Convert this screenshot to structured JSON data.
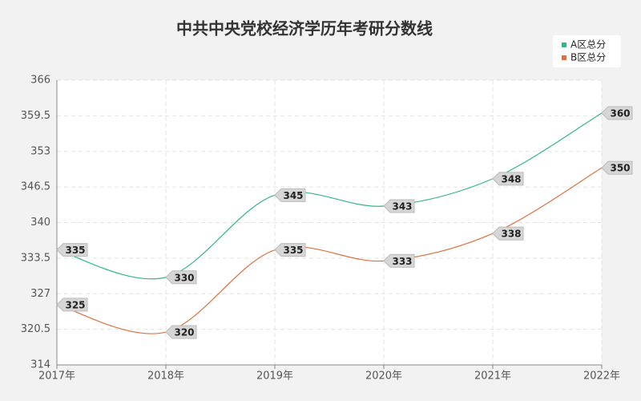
{
  "chart_data": {
    "type": "line",
    "title": "中共中央党校经济学历年考研分数线",
    "categories": [
      "2017年",
      "2018年",
      "2019年",
      "2020年",
      "2021年",
      "2022年"
    ],
    "series": [
      {
        "name": "A区总分",
        "color": "#33b58f",
        "values": [
          335,
          330,
          345,
          343,
          348,
          360
        ]
      },
      {
        "name": "B区总分",
        "color": "#e0703f",
        "values": [
          325,
          320,
          335,
          333,
          338,
          350
        ]
      }
    ],
    "ylim": [
      314,
      366
    ],
    "yticks": [
      314,
      320.5,
      327,
      333.5,
      340,
      346.5,
      353,
      359.5,
      366
    ],
    "grid": true,
    "legend": "top-right"
  }
}
